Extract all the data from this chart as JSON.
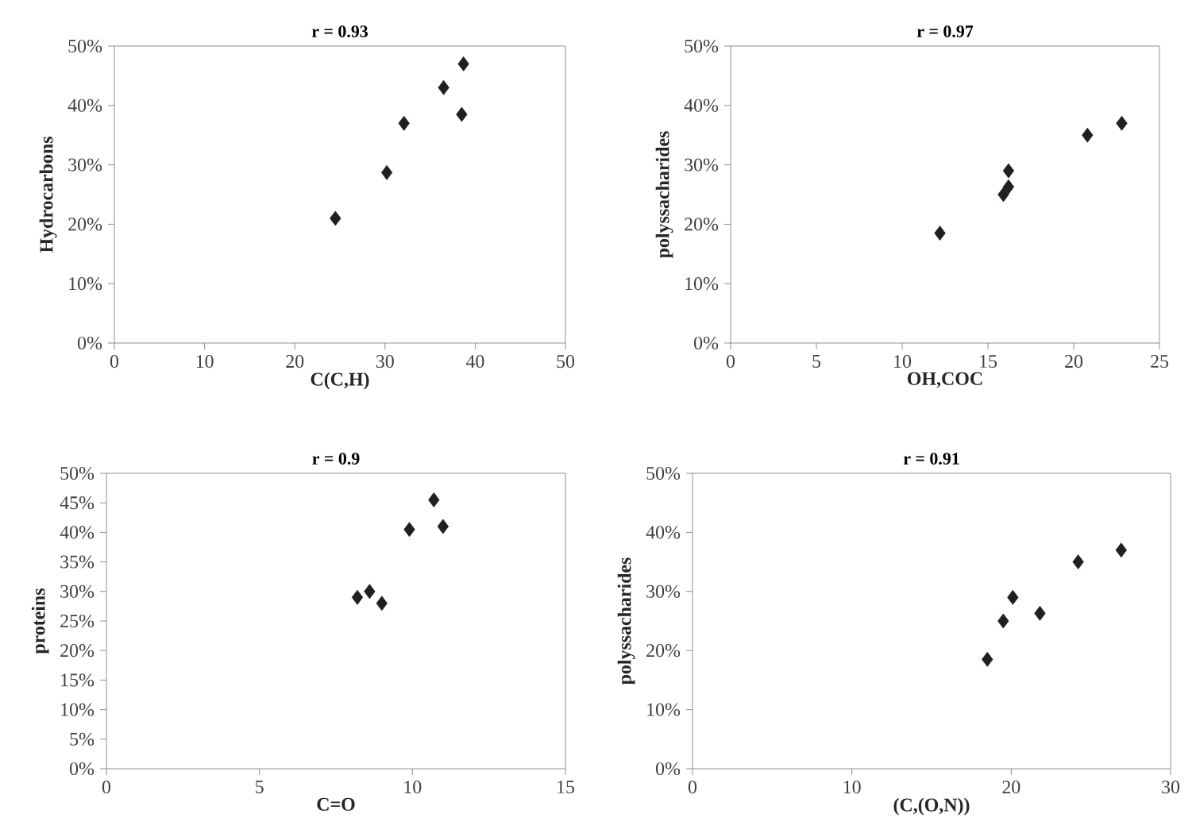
{
  "chart_data": [
    {
      "type": "scatter",
      "title": "r = 0.93",
      "xlabel": "C(C,H)",
      "ylabel": "Hydrocarbons",
      "x": [
        24.5,
        30.2,
        32.1,
        36.5,
        38.5,
        38.7
      ],
      "values": [
        21,
        28.7,
        37,
        43,
        38.5,
        47
      ],
      "color": "#231f20",
      "marker": "diamond",
      "xlim": [
        0,
        50
      ],
      "ylim": [
        0,
        50
      ],
      "xticks": [
        0,
        10,
        20,
        30,
        40,
        50
      ],
      "yticks": [
        {
          "value": 0,
          "label": "0%"
        },
        {
          "value": 10,
          "label": "10%"
        },
        {
          "value": 20,
          "label": "20%"
        },
        {
          "value": 30,
          "label": "30%"
        },
        {
          "value": 40,
          "label": "40%"
        },
        {
          "value": 50,
          "label": "50%"
        }
      ]
    },
    {
      "type": "scatter",
      "title": "r = 0.97",
      "xlabel": "OH,COC",
      "ylabel": "polyssacharides",
      "x": [
        12.2,
        15.9,
        16.2,
        16.2,
        20.8,
        22.8
      ],
      "values": [
        18.5,
        25,
        26.3,
        29,
        35,
        37
      ],
      "color": "#231f20",
      "marker": "diamond",
      "xlim": [
        0,
        25
      ],
      "ylim": [
        0,
        50
      ],
      "xticks": [
        0,
        5,
        10,
        15,
        20,
        25
      ],
      "yticks": [
        {
          "value": 0,
          "label": "0%"
        },
        {
          "value": 10,
          "label": "10%"
        },
        {
          "value": 20,
          "label": "20%"
        },
        {
          "value": 30,
          "label": "30%"
        },
        {
          "value": 40,
          "label": "40%"
        },
        {
          "value": 50,
          "label": "50%"
        }
      ]
    },
    {
      "type": "scatter",
      "title": "r = 0.9",
      "xlabel": "C=O",
      "ylabel": "proteins",
      "x": [
        8.2,
        8.6,
        9.0,
        9.9,
        10.7,
        11.0
      ],
      "values": [
        29,
        30,
        28,
        40.5,
        45.5,
        41
      ],
      "color": "#231f20",
      "marker": "diamond",
      "xlim": [
        0,
        15
      ],
      "ylim": [
        0,
        50
      ],
      "xticks": [
        0,
        5,
        10,
        15
      ],
      "yticks": [
        {
          "value": 0,
          "label": "0%"
        },
        {
          "value": 5,
          "label": "5%"
        },
        {
          "value": 10,
          "label": "10%"
        },
        {
          "value": 15,
          "label": "15%"
        },
        {
          "value": 20,
          "label": "20%"
        },
        {
          "value": 25,
          "label": "25%"
        },
        {
          "value": 30,
          "label": "30%"
        },
        {
          "value": 35,
          "label": "35%"
        },
        {
          "value": 40,
          "label": "40%"
        },
        {
          "value": 45,
          "label": "45%"
        },
        {
          "value": 50,
          "label": "50%"
        }
      ]
    },
    {
      "type": "scatter",
      "title": "r = 0.91",
      "xlabel": "(C,(O,N))",
      "ylabel": "polyssacharides",
      "x": [
        18.5,
        19.5,
        20.1,
        21.8,
        24.2,
        26.9
      ],
      "values": [
        18.5,
        25,
        29,
        26.3,
        35,
        37
      ],
      "color": "#231f20",
      "marker": "diamond",
      "xlim": [
        0,
        30
      ],
      "ylim": [
        0,
        50
      ],
      "xticks": [
        0,
        10,
        20,
        30
      ],
      "yticks": [
        {
          "value": 0,
          "label": "0%"
        },
        {
          "value": 10,
          "label": "10%"
        },
        {
          "value": 20,
          "label": "20%"
        },
        {
          "value": 30,
          "label": "30%"
        },
        {
          "value": 40,
          "label": "40%"
        },
        {
          "value": 50,
          "label": "50%"
        }
      ]
    }
  ]
}
